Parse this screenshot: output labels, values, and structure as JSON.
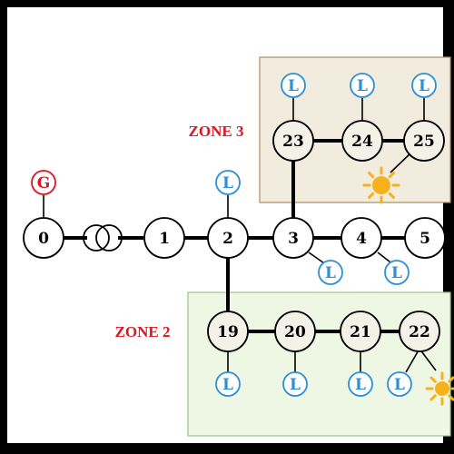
{
  "colors": {
    "frame": "#000000",
    "background": "#ffffff",
    "zone3_fill": "#f2ecdf",
    "zone3_border": "#a88f5d",
    "zone2_fill": "#eef6e4",
    "zone2_border": "#9cc487",
    "node_fill_zone": "#f4f1e8",
    "line": "#000000",
    "load_color": "#2d8fd6",
    "generator_color": "#e1141f",
    "zone_label_color": "#e1141f",
    "sun_color": "#f6b21b"
  },
  "zones": [
    {
      "id": "zone3",
      "label": "ZONE 3"
    },
    {
      "id": "zone2",
      "label": "ZONE 2"
    }
  ],
  "nodes": [
    {
      "id": "n0",
      "label": "0"
    },
    {
      "id": "n1",
      "label": "1"
    },
    {
      "id": "n2",
      "label": "2"
    },
    {
      "id": "n3",
      "label": "3"
    },
    {
      "id": "n4",
      "label": "4"
    },
    {
      "id": "n5",
      "label": "5"
    },
    {
      "id": "n19",
      "label": "19"
    },
    {
      "id": "n20",
      "label": "20"
    },
    {
      "id": "n21",
      "label": "21"
    },
    {
      "id": "n22",
      "label": "22"
    },
    {
      "id": "n23",
      "label": "23"
    },
    {
      "id": "n24",
      "label": "24"
    },
    {
      "id": "n25",
      "label": "25"
    }
  ],
  "generator": {
    "label": "G",
    "icon": "generator-icon"
  },
  "load": {
    "label": "L",
    "icon": "load-icon"
  },
  "transformer_icon": "transformer-icon",
  "pv_icon": "sun-icon"
}
